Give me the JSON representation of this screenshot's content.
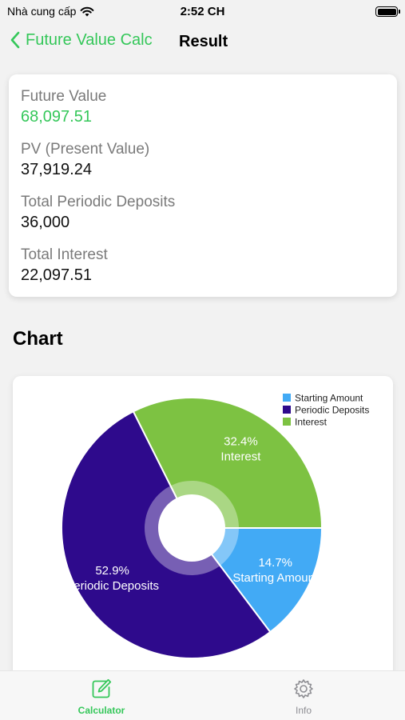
{
  "status_bar": {
    "carrier": "Nhà cung cấp",
    "time": "2:52 CH"
  },
  "nav": {
    "back_label": "Future Value Calc",
    "title": "Result"
  },
  "results": [
    {
      "label": "Future Value",
      "value": "68,097.51"
    },
    {
      "label": "PV (Present Value)",
      "value": "37,919.24"
    },
    {
      "label": "Total Periodic Deposits",
      "value": "36,000"
    },
    {
      "label": "Total Interest",
      "value": "22,097.51"
    }
  ],
  "chart_section": {
    "title": "Chart"
  },
  "colors": {
    "accent": "#34c759",
    "starting_amount": "#42aaf5",
    "periodic_deposits": "#2e0a8c",
    "interest": "#7dc242"
  },
  "chart_data": {
    "type": "pie",
    "style": "donut",
    "legend_position": "top-right",
    "series": [
      {
        "name": "Starting Amount",
        "value": 14.7,
        "percent_label": "14.7%",
        "color": "#42aaf5"
      },
      {
        "name": "Periodic Deposits",
        "value": 52.9,
        "percent_label": "52.9%",
        "color": "#2e0a8c"
      },
      {
        "name": "Interest",
        "value": 32.4,
        "percent_label": "32.4%",
        "color": "#7dc242"
      }
    ]
  },
  "tabs": [
    {
      "label": "Calculator",
      "icon": "edit-icon",
      "active": true
    },
    {
      "label": "Info",
      "icon": "gear-icon",
      "active": false
    }
  ]
}
